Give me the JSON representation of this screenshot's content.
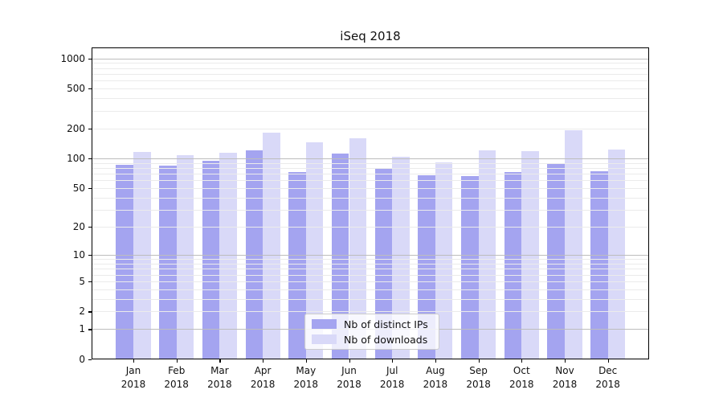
{
  "title": "iSeq 2018",
  "chart_data": {
    "type": "bar",
    "title": "iSeq 2018",
    "xlabel": "",
    "ylabel": "",
    "scale": "log1p",
    "grid": true,
    "legend_position": "lower center",
    "categories": [
      "Jan 2018",
      "Feb 2018",
      "Mar 2018",
      "Apr 2018",
      "May 2018",
      "Jun 2018",
      "Jul 2018",
      "Aug 2018",
      "Sep 2018",
      "Oct 2018",
      "Nov 2018",
      "Dec 2018"
    ],
    "series": [
      {
        "name": "Nb of distinct IPs",
        "color": "#a4a4f0",
        "values": [
          86,
          85,
          94,
          120,
          73,
          112,
          80,
          67,
          66,
          72,
          90,
          74
        ]
      },
      {
        "name": "Nb of downloads",
        "color": "#d9d9f8",
        "values": [
          115,
          108,
          113,
          180,
          146,
          158,
          104,
          91,
          121,
          119,
          190,
          122
        ]
      }
    ],
    "yticks": [
      0,
      1,
      2,
      5,
      10,
      20,
      50,
      100,
      200,
      500,
      1000
    ],
    "ylim": [
      0,
      1270
    ]
  },
  "colors": {
    "bar_distinct_ips": "#a4a4f0",
    "bar_downloads": "#d9d9f8",
    "grid_major": "#bdbdbd",
    "grid_minor": "#ebebeb",
    "axis": "#000000",
    "text": "#111111"
  }
}
